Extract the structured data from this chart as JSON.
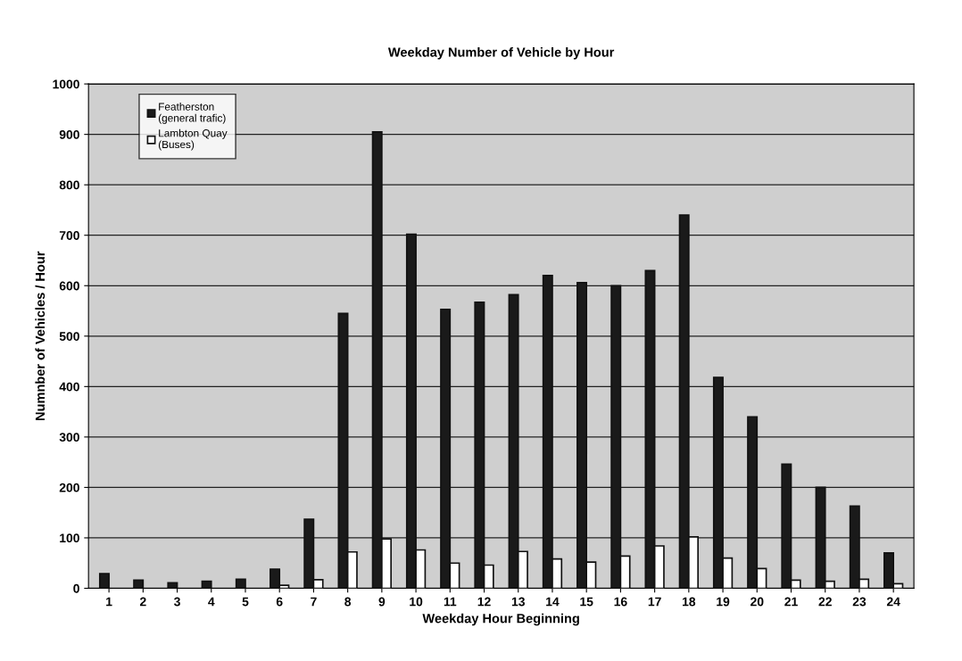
{
  "chart_data": {
    "type": "bar",
    "title": "Weekday Number of Vehicle by Hour",
    "xlabel": "Weekday Hour Beginning",
    "ylabel": "Numnber of Vehicles / Hour",
    "categories": [
      "1",
      "2",
      "3",
      "4",
      "5",
      "6",
      "7",
      "8",
      "9",
      "10",
      "11",
      "12",
      "13",
      "14",
      "15",
      "16",
      "17",
      "18",
      "19",
      "20",
      "21",
      "22",
      "23",
      "24"
    ],
    "series": [
      {
        "name": "Featherston\n(general trafic)",
        "color": "#1a1a1a",
        "values": [
          29,
          16,
          11,
          14,
          18,
          38,
          137,
          545,
          905,
          702,
          553,
          567,
          582,
          620,
          606,
          600,
          630,
          740,
          418,
          340,
          246,
          200,
          163,
          70
        ]
      },
      {
        "name": "Lambton Quay\n(Buses)",
        "color": "#ffffff",
        "values": [
          null,
          null,
          null,
          null,
          null,
          6,
          17,
          72,
          98,
          76,
          50,
          46,
          73,
          58,
          52,
          64,
          84,
          102,
          60,
          39,
          16,
          14,
          18,
          9
        ]
      }
    ],
    "ylim": [
      0,
      1000
    ],
    "yticks": [
      0,
      100,
      200,
      300,
      400,
      500,
      600,
      700,
      800,
      900,
      1000
    ],
    "grid": "y",
    "legend": "top left"
  }
}
